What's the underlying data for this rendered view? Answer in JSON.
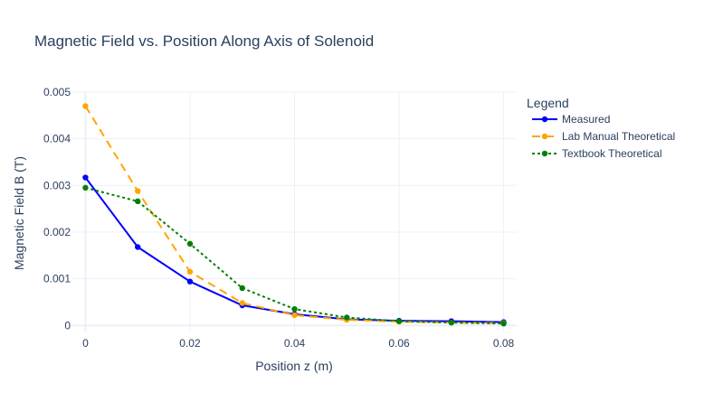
{
  "chart_data": {
    "type": "line",
    "title": "Magnetic Field vs. Position Along Axis of Solenoid",
    "xlabel": "Position z (m)",
    "ylabel": "Magnetic Field B (T)",
    "xlim": [
      -0.0025,
      0.0825
    ],
    "ylim": [
      -0.00015,
      0.005
    ],
    "xticks": [
      0,
      0.02,
      0.04,
      0.06,
      0.08
    ],
    "xtick_labels": [
      "0",
      "0.02",
      "0.04",
      "0.06",
      "0.08"
    ],
    "yticks": [
      0,
      0.001,
      0.002,
      0.003,
      0.004,
      0.005
    ],
    "ytick_labels": [
      "0",
      "0.001",
      "0.002",
      "0.003",
      "0.004",
      "0.005"
    ],
    "grid": true,
    "legend": {
      "title": "Legend",
      "position": "right"
    },
    "x": [
      0,
      0.01,
      0.02,
      0.03,
      0.04,
      0.05,
      0.06,
      0.07,
      0.08
    ],
    "series": [
      {
        "name": "Measured",
        "color": "#0000ff",
        "dash": "solid",
        "values": [
          0.00317,
          0.00168,
          0.00094,
          0.00043,
          0.00024,
          0.00013,
          0.0001,
          9e-05,
          7e-05
        ]
      },
      {
        "name": "Lab Manual Theoretical",
        "color": "#ffa500",
        "dash": "dash",
        "values": [
          0.0047,
          0.00288,
          0.00115,
          0.00048,
          0.00022,
          0.00012,
          8e-05,
          6e-05,
          5e-05
        ]
      },
      {
        "name": "Textbook Theoretical",
        "color": "#008000",
        "dash": "dot",
        "values": [
          0.00295,
          0.00266,
          0.00175,
          0.0008,
          0.00035,
          0.00017,
          9e-05,
          6e-05,
          4e-05
        ]
      }
    ]
  }
}
